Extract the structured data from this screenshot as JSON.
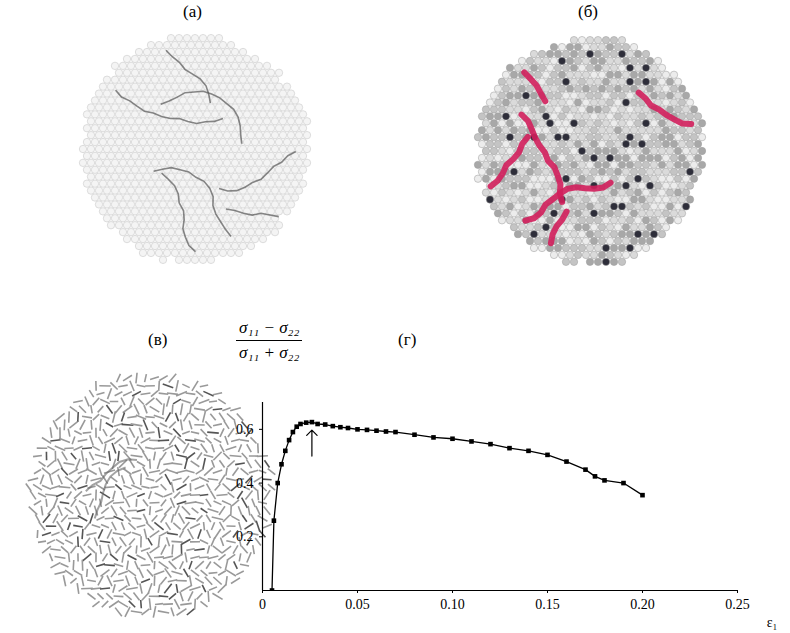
{
  "panel_labels": [
    "(а)",
    "(б)",
    "(в)"
  ],
  "chart_data": {
    "type": "line",
    "panel_label": "(г)",
    "y_label": {
      "numerator": "σ₁₁ − σ₂₂",
      "denominator": "σ₁₁ + σ₂₂"
    },
    "x_label": "ε₁",
    "x": [
      0.005,
      0.006,
      0.008,
      0.01,
      0.012,
      0.014,
      0.016,
      0.018,
      0.02,
      0.023,
      0.026,
      0.029,
      0.033,
      0.037,
      0.041,
      0.045,
      0.05,
      0.055,
      0.06,
      0.065,
      0.07,
      0.08,
      0.09,
      0.1,
      0.11,
      0.12,
      0.13,
      0.14,
      0.15,
      0.16,
      0.17,
      0.175,
      0.18,
      0.19,
      0.2
    ],
    "values": [
      0.0,
      0.26,
      0.4,
      0.47,
      0.52,
      0.56,
      0.59,
      0.61,
      0.62,
      0.625,
      0.627,
      0.62,
      0.618,
      0.612,
      0.608,
      0.605,
      0.6,
      0.598,
      0.595,
      0.592,
      0.59,
      0.58,
      0.57,
      0.565,
      0.555,
      0.545,
      0.53,
      0.52,
      0.505,
      0.48,
      0.45,
      0.425,
      0.41,
      0.4,
      0.355
    ],
    "color": "#000000",
    "marker": "square",
    "xlim": [
      0,
      0.25
    ],
    "ylim": [
      0,
      0.7
    ],
    "xticks": [
      0,
      0.05,
      {
        "value": 0.1,
        "label": "0.10"
      },
      0.15,
      {
        "value": 0.2,
        "label": "0.20"
      },
      0.25
    ],
    "yticks": [
      0.2,
      0.4,
      0.6
    ]
  }
}
